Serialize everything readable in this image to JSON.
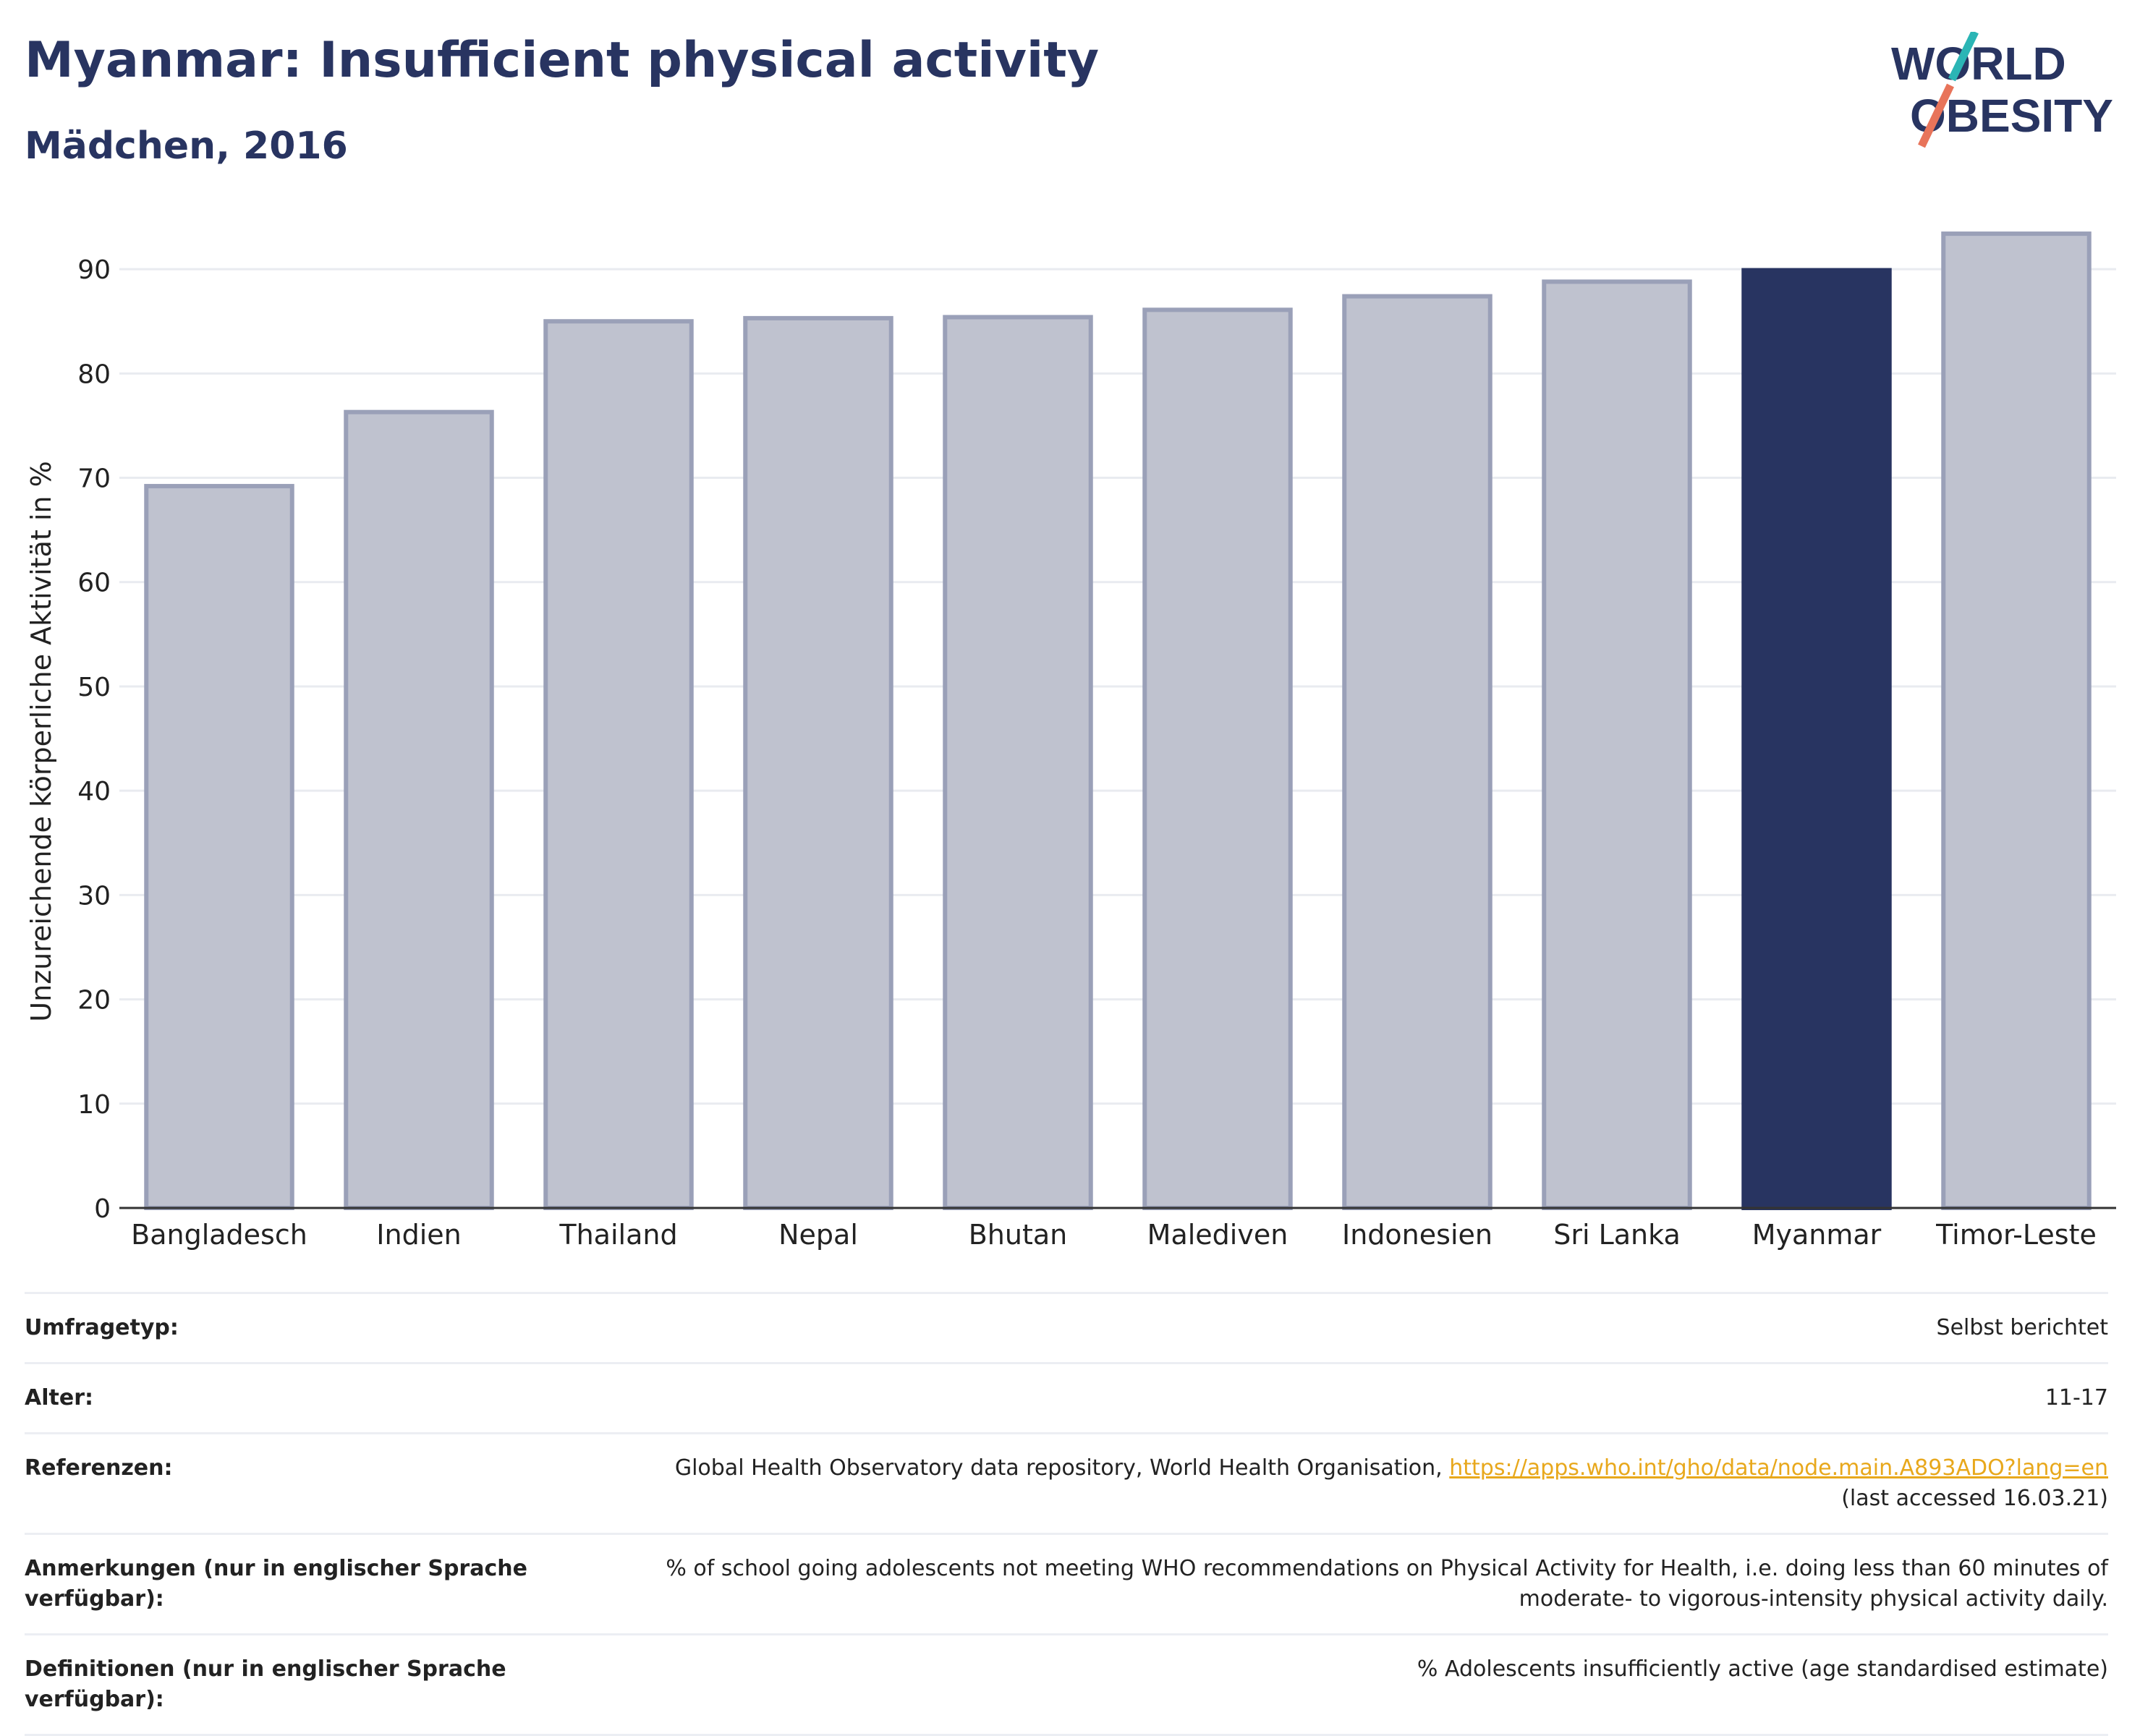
{
  "header": {
    "title": "Myanmar: Insufficient physical activity",
    "subtitle": "Mädchen, 2016",
    "logo_line1": "WORLD",
    "logo_line2": "OBESITY"
  },
  "chart_data": {
    "type": "bar",
    "title": "Myanmar: Insufficient physical activity",
    "subtitle": "Mädchen, 2016",
    "xlabel": "",
    "ylabel": "Unzureichende körperliche Aktivität in %",
    "ylim": [
      0,
      95
    ],
    "yticks": [
      0,
      10,
      20,
      30,
      40,
      50,
      60,
      70,
      80,
      90
    ],
    "grid": true,
    "categories": [
      "Bangladesch",
      "Indien",
      "Thailand",
      "Nepal",
      "Bhutan",
      "Malediven",
      "Indonesien",
      "Sri Lanka",
      "Myanmar",
      "Timor-Leste"
    ],
    "values": [
      69.2,
      76.3,
      85.0,
      85.3,
      85.4,
      86.1,
      87.4,
      88.8,
      89.9,
      93.4
    ],
    "highlight": "Myanmar",
    "colors": {
      "bar": "#bfc2cf",
      "bar_border": "#9aa0b8",
      "highlight": "#283461"
    }
  },
  "meta": {
    "survey_label": "Umfragetyp:",
    "survey_value": "Selbst berichtet",
    "age_label": "Alter:",
    "age_value": "11-17",
    "ref_label": "Referenzen:",
    "ref_text": "Global Health Observatory data repository, World Health Organisation,",
    "ref_link": "https://apps.who.int/gho/data/node.main.A893ADO?lang=en",
    "ref_accessed": "(last accessed 16.03.21)",
    "notes_label": "Anmerkungen (nur in englischer Sprache verfügbar):",
    "notes_value": "% of school going adolescents not meeting WHO recommendations on Physical Activity for Health, i.e. doing less than 60 minutes of moderate- to vigorous-intensity physical activity daily.",
    "def_label": "Definitionen (nur in englischer Sprache verfügbar):",
    "def_value": "% Adolescents insufficiently active (age standardised estimate)"
  }
}
